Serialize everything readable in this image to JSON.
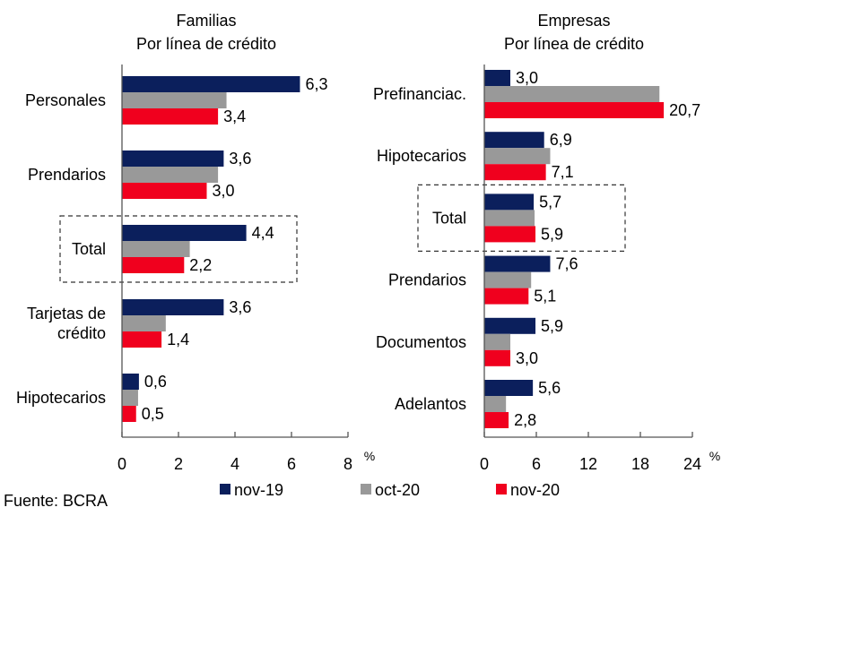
{
  "colors": {
    "nov-19": "#0b1f5c",
    "oct-20": "#999999",
    "nov-20": "#f0001e"
  },
  "source": "Fuente: BCRA",
  "chart_data": [
    {
      "type": "bar",
      "orientation": "horizontal",
      "title": "Familias",
      "subtitle": "Por línea de crédito",
      "unit": "%",
      "xlim": [
        0,
        8
      ],
      "xticks": [
        0,
        2,
        4,
        6,
        8
      ],
      "categories": [
        "Personales",
        "Prendarios",
        "Total",
        "Tarjetas de crédito",
        "Hipotecarios"
      ],
      "category_lines": [
        [
          "Personales"
        ],
        [
          "Prendarios"
        ],
        [
          "Total"
        ],
        [
          "Tarjetas de",
          "crédito"
        ],
        [
          "Hipotecarios"
        ]
      ],
      "highlighted": "Total",
      "series": [
        {
          "name": "nov-19",
          "values": [
            6.3,
            3.6,
            4.4,
            3.6,
            0.6
          ],
          "labels": [
            "6,3",
            "3,6",
            "4,4",
            "3,6",
            "0,6"
          ]
        },
        {
          "name": "oct-20",
          "values": [
            3.7,
            3.4,
            2.4,
            1.55,
            0.57
          ],
          "labels": [
            null,
            null,
            null,
            null,
            null
          ]
        },
        {
          "name": "nov-20",
          "values": [
            3.4,
            3.0,
            2.2,
            1.4,
            0.5
          ],
          "labels": [
            "3,4",
            "3,0",
            "2,2",
            "1,4",
            "0,5"
          ]
        }
      ]
    },
    {
      "type": "bar",
      "orientation": "horizontal",
      "title": "Empresas",
      "subtitle": "Por línea de crédito",
      "unit": "%",
      "xlim": [
        0,
        24
      ],
      "xticks": [
        0,
        6,
        12,
        18,
        24
      ],
      "categories": [
        "Prefinanciac.",
        "Hipotecarios",
        "Total",
        "Prendarios",
        "Documentos",
        "Adelantos"
      ],
      "category_lines": [
        [
          "Prefinanciac."
        ],
        [
          "Hipotecarios"
        ],
        [
          "Total"
        ],
        [
          "Prendarios"
        ],
        [
          "Documentos"
        ],
        [
          "Adelantos"
        ]
      ],
      "highlighted": "Total",
      "series": [
        {
          "name": "nov-19",
          "values": [
            3.0,
            6.9,
            5.7,
            7.6,
            5.9,
            5.6
          ],
          "labels": [
            "3,0",
            "6,9",
            "5,7",
            "7,6",
            "5,9",
            "5,6"
          ]
        },
        {
          "name": "oct-20",
          "values": [
            20.2,
            7.6,
            5.8,
            5.4,
            3.0,
            2.5
          ],
          "labels": [
            null,
            null,
            null,
            null,
            null,
            null
          ]
        },
        {
          "name": "nov-20",
          "values": [
            20.7,
            7.1,
            5.9,
            5.1,
            3.0,
            2.8
          ],
          "labels": [
            "20,7",
            "7,1",
            "5,9",
            "5,1",
            "3,0",
            "2,8"
          ]
        }
      ]
    }
  ],
  "legend": [
    {
      "name": "nov-19",
      "label": "nov-19"
    },
    {
      "name": "oct-20",
      "label": "oct-20"
    },
    {
      "name": "nov-20",
      "label": "nov-20"
    }
  ]
}
